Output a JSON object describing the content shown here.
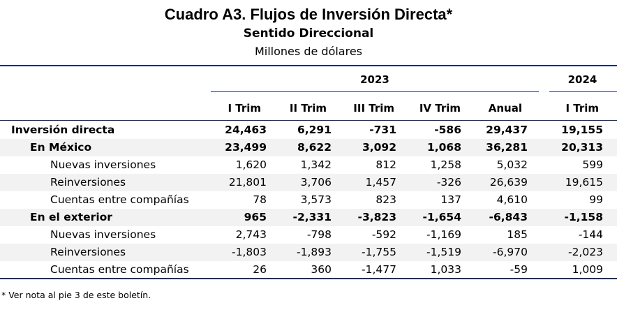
{
  "title": "Cuadro A3. Flujos de Inversión Directa*",
  "subtitle": "Sentido Direccional",
  "units": "Millones de dólares",
  "years": [
    "2023",
    "2024"
  ],
  "columns": [
    "I Trim",
    "II Trim",
    "III Trim",
    "IV Trim",
    "Anual",
    "I Trim"
  ],
  "rows": [
    {
      "label": "Inversión directa",
      "level": 0,
      "bold": true,
      "shade": false,
      "values": [
        "24,463",
        "6,291",
        "-731",
        "-586",
        "29,437",
        "19,155"
      ]
    },
    {
      "label": "En México",
      "level": 1,
      "bold": true,
      "shade": true,
      "values": [
        "23,499",
        "8,622",
        "3,092",
        "1,068",
        "36,281",
        "20,313"
      ]
    },
    {
      "label": "Nuevas inversiones",
      "level": 2,
      "bold": false,
      "shade": false,
      "values": [
        "1,620",
        "1,342",
        "812",
        "1,258",
        "5,032",
        "599"
      ]
    },
    {
      "label": "Reinversiones",
      "level": 2,
      "bold": false,
      "shade": true,
      "values": [
        "21,801",
        "3,706",
        "1,457",
        "-326",
        "26,639",
        "19,615"
      ]
    },
    {
      "label": "Cuentas entre compañías",
      "level": 2,
      "bold": false,
      "shade": false,
      "values": [
        "78",
        "3,573",
        "823",
        "137",
        "4,610",
        "99"
      ]
    },
    {
      "label": "En el exterior",
      "level": 1,
      "bold": true,
      "shade": true,
      "values": [
        "965",
        "-2,331",
        "-3,823",
        "-1,654",
        "-6,843",
        "-1,158"
      ]
    },
    {
      "label": "Nuevas inversiones",
      "level": 2,
      "bold": false,
      "shade": false,
      "values": [
        "2,743",
        "-798",
        "-592",
        "-1,169",
        "185",
        "-144"
      ]
    },
    {
      "label": "Reinversiones",
      "level": 2,
      "bold": false,
      "shade": true,
      "values": [
        "-1,803",
        "-1,893",
        "-1,755",
        "-1,519",
        "-6,970",
        "-2,023"
      ]
    },
    {
      "label": "Cuentas entre compañías",
      "level": 2,
      "bold": false,
      "shade": false,
      "values": [
        "26",
        "360",
        "-1,477",
        "1,033",
        "-59",
        "1,009"
      ]
    }
  ],
  "footnote": "* Ver nota al pie 3 de este boletín."
}
